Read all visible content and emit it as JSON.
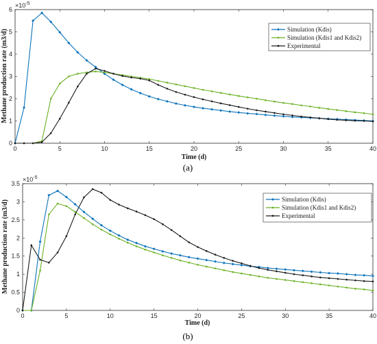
{
  "figure": {
    "caption_a": "(a)",
    "caption_b": "(b)"
  },
  "colors": {
    "kdis": "#0a72ba",
    "kdis12": "#6ab023",
    "exp": "#1a1a1a"
  },
  "chart_data": [
    {
      "type": "line",
      "multiplier": "×10",
      "multiplier_exp": "-5",
      "xlabel": "Time (d)",
      "ylabel": "Methane production rate (m3/d)",
      "xlim": [
        0,
        40
      ],
      "ylim": [
        0,
        6
      ],
      "xticks": [
        0,
        5,
        10,
        15,
        20,
        25,
        30,
        35,
        40
      ],
      "yticks": [
        0,
        1,
        2,
        3,
        4,
        5,
        6
      ],
      "legend_position": "top-right",
      "series": [
        {
          "name": "Simulation (Kdis)",
          "color": "#0a72ba",
          "marker": "diamond",
          "x": [
            0,
            1,
            2,
            3,
            4,
            5,
            6,
            7,
            8,
            9,
            10,
            11,
            12,
            13,
            14,
            15,
            16,
            17,
            18,
            19,
            20,
            21,
            22,
            23,
            24,
            25,
            26,
            27,
            28,
            29,
            30,
            31,
            32,
            33,
            34,
            35,
            36,
            37,
            38,
            39,
            40
          ],
          "y": [
            0,
            1.6,
            5.5,
            5.85,
            5.45,
            4.98,
            4.5,
            4.08,
            3.72,
            3.42,
            3.12,
            2.85,
            2.62,
            2.42,
            2.25,
            2.1,
            1.98,
            1.88,
            1.78,
            1.7,
            1.63,
            1.57,
            1.52,
            1.47,
            1.42,
            1.38,
            1.34,
            1.31,
            1.27,
            1.24,
            1.21,
            1.18,
            1.16,
            1.14,
            1.12,
            1.1,
            1.08,
            1.06,
            1.04,
            1.02,
            1.0
          ]
        },
        {
          "name": "Simulation (Kdis1 and Kdis2)",
          "color": "#6ab023",
          "marker": "dot",
          "x": [
            0,
            1,
            2,
            3,
            4,
            5,
            6,
            7,
            8,
            9,
            10,
            11,
            12,
            13,
            14,
            15,
            16,
            17,
            18,
            19,
            20,
            21,
            22,
            23,
            24,
            25,
            26,
            27,
            28,
            29,
            30,
            31,
            32,
            33,
            34,
            35,
            36,
            37,
            38,
            39,
            40
          ],
          "y": [
            0,
            0,
            0,
            0.1,
            2.0,
            2.68,
            3.0,
            3.12,
            3.18,
            3.22,
            3.18,
            3.12,
            3.06,
            3.0,
            2.94,
            2.88,
            2.8,
            2.72,
            2.64,
            2.56,
            2.48,
            2.4,
            2.33,
            2.26,
            2.19,
            2.12,
            2.06,
            2.0,
            1.93,
            1.87,
            1.81,
            1.76,
            1.7,
            1.65,
            1.59,
            1.54,
            1.49,
            1.44,
            1.39,
            1.35,
            1.3
          ]
        },
        {
          "name": "Experimental",
          "color": "#1a1a1a",
          "marker": "dot",
          "x": [
            0,
            1,
            2,
            3,
            4,
            5,
            6,
            7,
            8,
            9,
            10,
            11,
            12,
            13,
            14,
            15,
            16,
            17,
            18,
            19,
            20,
            21,
            22,
            23,
            24,
            25,
            26,
            27,
            28,
            29,
            30,
            31,
            32,
            33,
            34,
            35,
            36,
            37,
            38,
            39,
            40
          ],
          "y": [
            0,
            0,
            0,
            0.05,
            0.45,
            1.1,
            1.82,
            2.55,
            3.12,
            3.35,
            3.25,
            3.12,
            3.02,
            2.95,
            2.9,
            2.82,
            2.62,
            2.45,
            2.3,
            2.18,
            2.07,
            1.97,
            1.88,
            1.79,
            1.71,
            1.63,
            1.55,
            1.48,
            1.42,
            1.36,
            1.3,
            1.25,
            1.2,
            1.16,
            1.12,
            1.08,
            1.05,
            1.03,
            1.01,
            1.0,
            0.98
          ]
        }
      ]
    },
    {
      "type": "line",
      "multiplier": "×10",
      "multiplier_exp": "-5",
      "xlabel": "Time (d)",
      "ylabel": "Methane production rate (m3/d)",
      "xlim": [
        0,
        40
      ],
      "ylim": [
        0,
        3.5
      ],
      "xticks": [
        0,
        5,
        10,
        15,
        20,
        25,
        30,
        35,
        40
      ],
      "yticks": [
        0,
        0.5,
        1,
        1.5,
        2,
        2.5,
        3,
        3.5
      ],
      "yticklabels": [
        "0",
        "0.5",
        "1",
        "1.5",
        "2",
        "2.5",
        "3",
        "3.5"
      ],
      "legend_position": "top-right",
      "series": [
        {
          "name": "Simulation (Kdis)",
          "color": "#0a72ba",
          "marker": "diamond",
          "x": [
            0,
            1,
            2,
            3,
            4,
            5,
            6,
            7,
            8,
            9,
            10,
            11,
            12,
            13,
            14,
            15,
            16,
            17,
            18,
            19,
            20,
            21,
            22,
            23,
            24,
            25,
            26,
            27,
            28,
            29,
            30,
            31,
            32,
            33,
            34,
            35,
            36,
            37,
            38,
            39,
            40
          ],
          "y": [
            0,
            0,
            1.9,
            3.18,
            3.3,
            3.13,
            2.93,
            2.72,
            2.53,
            2.35,
            2.2,
            2.07,
            1.95,
            1.86,
            1.77,
            1.7,
            1.63,
            1.57,
            1.52,
            1.47,
            1.43,
            1.39,
            1.35,
            1.31,
            1.28,
            1.25,
            1.22,
            1.2,
            1.17,
            1.15,
            1.13,
            1.11,
            1.09,
            1.07,
            1.05,
            1.03,
            1.02,
            1.0,
            0.98,
            0.97,
            0.95
          ]
        },
        {
          "name": "Simulation (Kdis1 and Kdis2)",
          "color": "#6ab023",
          "marker": "dot",
          "x": [
            0,
            1,
            2,
            3,
            4,
            5,
            6,
            7,
            8,
            9,
            10,
            11,
            12,
            13,
            14,
            15,
            16,
            17,
            18,
            19,
            20,
            21,
            22,
            23,
            24,
            25,
            26,
            27,
            28,
            29,
            30,
            31,
            32,
            33,
            34,
            35,
            36,
            37,
            38,
            39,
            40
          ],
          "y": [
            0,
            0,
            1.1,
            2.65,
            2.95,
            2.88,
            2.72,
            2.55,
            2.38,
            2.23,
            2.1,
            1.98,
            1.87,
            1.77,
            1.68,
            1.6,
            1.52,
            1.45,
            1.38,
            1.32,
            1.26,
            1.21,
            1.16,
            1.11,
            1.06,
            1.02,
            0.98,
            0.94,
            0.9,
            0.87,
            0.84,
            0.81,
            0.78,
            0.75,
            0.72,
            0.69,
            0.66,
            0.63,
            0.6,
            0.58,
            0.55
          ]
        },
        {
          "name": "Experimental",
          "color": "#1a1a1a",
          "marker": "dot",
          "x": [
            0,
            1,
            2,
            3,
            4,
            5,
            6,
            7,
            8,
            9,
            10,
            11,
            12,
            13,
            14,
            15,
            16,
            17,
            18,
            19,
            20,
            21,
            22,
            23,
            24,
            25,
            26,
            27,
            28,
            29,
            30,
            31,
            32,
            33,
            34,
            35,
            36,
            37,
            38,
            39,
            40
          ],
          "y": [
            0,
            1.8,
            1.4,
            1.32,
            1.6,
            2.05,
            2.65,
            3.12,
            3.35,
            3.25,
            3.05,
            2.92,
            2.82,
            2.73,
            2.63,
            2.52,
            2.38,
            2.22,
            2.05,
            1.88,
            1.75,
            1.64,
            1.54,
            1.45,
            1.37,
            1.3,
            1.23,
            1.17,
            1.12,
            1.08,
            1.04,
            1.0,
            0.97,
            0.94,
            0.91,
            0.89,
            0.87,
            0.85,
            0.83,
            0.81,
            0.8
          ]
        }
      ]
    }
  ]
}
